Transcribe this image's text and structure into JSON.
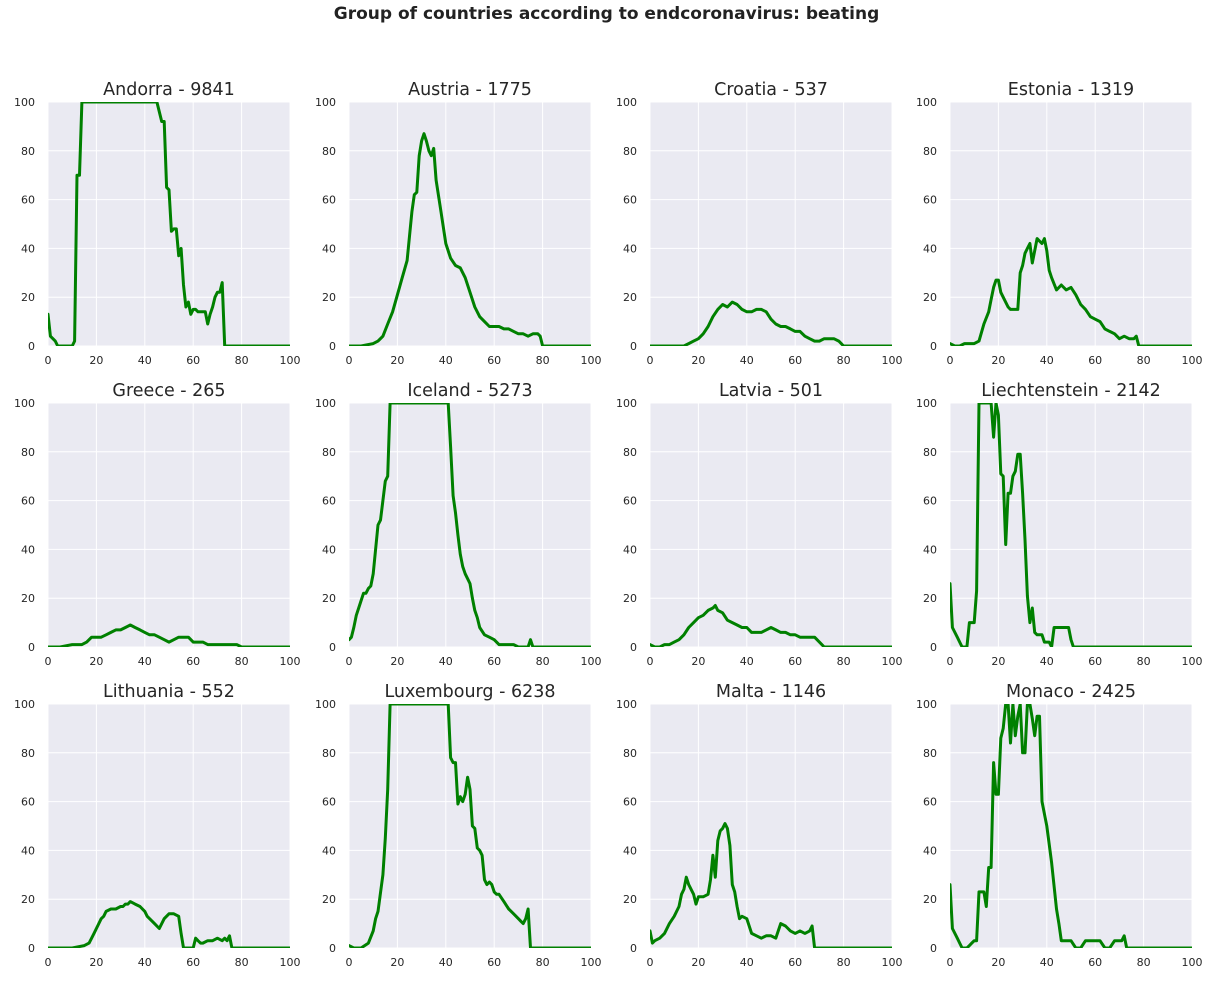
{
  "suptitle": "Group of countries according to endcoronavirus: beating",
  "style": {
    "line_color": "#008000",
    "axes_bg": "#eaeaf2",
    "grid_color": "#ffffff"
  },
  "chart_data": [
    {
      "type": "line",
      "title": "Andorra - 9841",
      "xlim": [
        0,
        100
      ],
      "ylim": [
        0,
        100
      ],
      "xticks": [
        0,
        20,
        40,
        60,
        80,
        100
      ],
      "yticks": [
        0,
        20,
        40,
        60,
        80,
        100
      ],
      "grid": true,
      "x": [
        0,
        1,
        3,
        4,
        5,
        10,
        11,
        12,
        13,
        14,
        45,
        47,
        48,
        49,
        50,
        51,
        52,
        53,
        54,
        55,
        56,
        57,
        58,
        59,
        60,
        61,
        62,
        63,
        64,
        65,
        66,
        67,
        68,
        69,
        70,
        71,
        72,
        73,
        74,
        80,
        100
      ],
      "y": [
        13,
        4,
        2,
        0,
        0,
        0,
        2,
        70,
        70,
        100,
        100,
        92,
        92,
        65,
        64,
        47,
        48,
        48,
        37,
        40,
        25,
        16,
        18,
        13,
        15,
        15,
        14,
        14,
        14,
        14,
        9,
        13,
        16,
        20,
        22,
        22,
        26,
        0,
        0,
        0,
        0
      ]
    },
    {
      "type": "line",
      "title": "Austria - 1775",
      "xlim": [
        0,
        100
      ],
      "ylim": [
        0,
        100
      ],
      "xticks": [
        0,
        20,
        40,
        60,
        80,
        100
      ],
      "yticks": [
        0,
        20,
        40,
        60,
        80,
        100
      ],
      "grid": true,
      "x": [
        0,
        5,
        10,
        12,
        14,
        16,
        18,
        20,
        22,
        24,
        25,
        26,
        27,
        28,
        29,
        30,
        31,
        32,
        33,
        34,
        35,
        36,
        38,
        40,
        42,
        44,
        46,
        48,
        50,
        52,
        54,
        56,
        58,
        60,
        62,
        64,
        66,
        68,
        70,
        72,
        74,
        76,
        78,
        79,
        80,
        100
      ],
      "y": [
        0,
        0,
        1,
        2,
        4,
        9,
        14,
        21,
        28,
        35,
        45,
        55,
        62,
        63,
        78,
        84,
        87,
        84,
        80,
        78,
        81,
        68,
        55,
        42,
        36,
        33,
        32,
        28,
        22,
        16,
        12,
        10,
        8,
        8,
        8,
        7,
        7,
        6,
        5,
        5,
        4,
        5,
        5,
        4,
        0,
        0
      ]
    },
    {
      "type": "line",
      "title": "Croatia - 537",
      "xlim": [
        0,
        100
      ],
      "ylim": [
        0,
        100
      ],
      "xticks": [
        0,
        20,
        40,
        60,
        80,
        100
      ],
      "yticks": [
        0,
        20,
        40,
        60,
        80,
        100
      ],
      "grid": true,
      "x": [
        0,
        5,
        10,
        14,
        16,
        18,
        20,
        22,
        24,
        26,
        28,
        30,
        32,
        34,
        36,
        38,
        40,
        42,
        44,
        46,
        48,
        50,
        52,
        54,
        56,
        58,
        60,
        62,
        64,
        66,
        68,
        70,
        72,
        74,
        76,
        78,
        80,
        100
      ],
      "y": [
        0,
        0,
        0,
        0,
        1,
        2,
        3,
        5,
        8,
        12,
        15,
        17,
        16,
        18,
        17,
        15,
        14,
        14,
        15,
        15,
        14,
        11,
        9,
        8,
        8,
        7,
        6,
        6,
        4,
        3,
        2,
        2,
        3,
        3,
        3,
        2,
        0,
        0
      ]
    },
    {
      "type": "line",
      "title": "Estonia - 1319",
      "xlim": [
        0,
        100
      ],
      "ylim": [
        0,
        100
      ],
      "xticks": [
        0,
        20,
        40,
        60,
        80,
        100
      ],
      "yticks": [
        0,
        20,
        40,
        60,
        80,
        100
      ],
      "grid": true,
      "x": [
        0,
        2,
        4,
        6,
        8,
        10,
        12,
        14,
        16,
        17,
        18,
        19,
        20,
        21,
        22,
        24,
        25,
        26,
        28,
        29,
        30,
        31,
        32,
        33,
        34,
        36,
        37,
        38,
        39,
        40,
        41,
        42,
        44,
        46,
        48,
        50,
        52,
        54,
        56,
        58,
        60,
        62,
        64,
        66,
        68,
        70,
        72,
        74,
        76,
        77,
        78,
        80,
        100
      ],
      "y": [
        1,
        0,
        0,
        1,
        1,
        1,
        2,
        9,
        14,
        19,
        24,
        27,
        27,
        22,
        20,
        16,
        15,
        15,
        15,
        30,
        33,
        38,
        40,
        42,
        34,
        44,
        43,
        42,
        44,
        39,
        31,
        28,
        23,
        25,
        23,
        24,
        21,
        17,
        15,
        12,
        11,
        10,
        7,
        6,
        5,
        3,
        4,
        3,
        3,
        4,
        0,
        0,
        0
      ]
    },
    {
      "type": "line",
      "title": "Greece - 265",
      "xlim": [
        0,
        100
      ],
      "ylim": [
        0,
        100
      ],
      "xticks": [
        0,
        20,
        40,
        60,
        80,
        100
      ],
      "yticks": [
        0,
        20,
        40,
        60,
        80,
        100
      ],
      "grid": true,
      "x": [
        0,
        5,
        10,
        12,
        14,
        16,
        18,
        20,
        22,
        24,
        26,
        28,
        30,
        32,
        34,
        36,
        38,
        40,
        42,
        44,
        46,
        48,
        50,
        52,
        54,
        56,
        58,
        60,
        62,
        64,
        66,
        70,
        74,
        76,
        78,
        80,
        100
      ],
      "y": [
        0,
        0,
        1,
        1,
        1,
        2,
        4,
        4,
        4,
        5,
        6,
        7,
        7,
        8,
        9,
        8,
        7,
        6,
        5,
        5,
        4,
        3,
        2,
        3,
        4,
        4,
        4,
        2,
        2,
        2,
        1,
        1,
        1,
        1,
        1,
        0,
        0
      ]
    },
    {
      "type": "line",
      "title": "Iceland - 5273",
      "xlim": [
        0,
        100
      ],
      "ylim": [
        0,
        100
      ],
      "xticks": [
        0,
        20,
        40,
        60,
        80,
        100
      ],
      "yticks": [
        0,
        20,
        40,
        60,
        80,
        100
      ],
      "grid": true,
      "x": [
        0,
        1,
        2,
        3,
        4,
        5,
        6,
        7,
        8,
        9,
        10,
        11,
        12,
        13,
        14,
        15,
        16,
        17,
        41,
        42,
        43,
        44,
        45,
        46,
        47,
        48,
        49,
        50,
        51,
        52,
        53,
        54,
        56,
        58,
        60,
        62,
        64,
        66,
        68,
        70,
        72,
        74,
        75,
        76,
        80,
        100
      ],
      "y": [
        3,
        4,
        8,
        13,
        16,
        19,
        22,
        22,
        24,
        25,
        30,
        40,
        50,
        52,
        60,
        68,
        70,
        100,
        100,
        82,
        62,
        55,
        46,
        38,
        33,
        30,
        28,
        26,
        20,
        15,
        12,
        8,
        5,
        4,
        3,
        1,
        1,
        1,
        1,
        0,
        0,
        0,
        3,
        0,
        0,
        0
      ]
    },
    {
      "type": "line",
      "title": "Latvia - 501",
      "xlim": [
        0,
        100
      ],
      "ylim": [
        0,
        100
      ],
      "xticks": [
        0,
        20,
        40,
        60,
        80,
        100
      ],
      "yticks": [
        0,
        20,
        40,
        60,
        80,
        100
      ],
      "grid": true,
      "x": [
        0,
        2,
        4,
        6,
        8,
        10,
        12,
        14,
        16,
        18,
        20,
        22,
        24,
        26,
        27,
        28,
        30,
        32,
        34,
        36,
        38,
        40,
        42,
        44,
        46,
        48,
        50,
        52,
        54,
        56,
        58,
        60,
        62,
        64,
        66,
        68,
        70,
        72,
        74,
        76,
        100
      ],
      "y": [
        1,
        0,
        0,
        1,
        1,
        2,
        3,
        5,
        8,
        10,
        12,
        13,
        15,
        16,
        17,
        15,
        14,
        11,
        10,
        9,
        8,
        8,
        6,
        6,
        6,
        7,
        8,
        7,
        6,
        6,
        5,
        5,
        4,
        4,
        4,
        4,
        2,
        0,
        0,
        0,
        0
      ]
    },
    {
      "type": "line",
      "title": "Liechtenstein - 2142",
      "xlim": [
        0,
        100
      ],
      "ylim": [
        0,
        100
      ],
      "xticks": [
        0,
        20,
        40,
        60,
        80,
        100
      ],
      "yticks": [
        0,
        20,
        40,
        60,
        80,
        100
      ],
      "grid": true,
      "x": [
        0,
        1,
        3,
        4,
        5,
        6,
        7,
        8,
        9,
        10,
        11,
        12,
        13,
        14,
        15,
        17,
        18,
        19,
        20,
        21,
        22,
        23,
        24,
        25,
        26,
        27,
        28,
        29,
        30,
        31,
        32,
        33,
        34,
        35,
        36,
        38,
        39,
        40,
        41,
        42,
        43,
        48,
        49,
        50,
        51,
        52,
        53,
        100
      ],
      "y": [
        26,
        8,
        4,
        2,
        0,
        0,
        0,
        10,
        10,
        10,
        23,
        100,
        100,
        100,
        100,
        100,
        86,
        100,
        95,
        71,
        70,
        42,
        63,
        63,
        70,
        72,
        79,
        79,
        63,
        44,
        21,
        10,
        16,
        6,
        5,
        5,
        2,
        2,
        2,
        0,
        8,
        8,
        8,
        3,
        0,
        0,
        0,
        0
      ]
    },
    {
      "type": "line",
      "title": "Lithuania - 552",
      "xlim": [
        0,
        100
      ],
      "ylim": [
        0,
        100
      ],
      "xticks": [
        0,
        20,
        40,
        60,
        80,
        100
      ],
      "yticks": [
        0,
        20,
        40,
        60,
        80,
        100
      ],
      "grid": true,
      "x": [
        0,
        5,
        10,
        15,
        17,
        18,
        19,
        20,
        21,
        22,
        23,
        24,
        26,
        28,
        30,
        31,
        32,
        33,
        34,
        36,
        38,
        40,
        41,
        42,
        44,
        46,
        48,
        50,
        52,
        54,
        55,
        56,
        57,
        58,
        59,
        60,
        61,
        62,
        63,
        64,
        66,
        68,
        70,
        72,
        73,
        74,
        75,
        76,
        77,
        80,
        100
      ],
      "y": [
        0,
        0,
        0,
        1,
        2,
        4,
        6,
        8,
        10,
        12,
        13,
        15,
        16,
        16,
        17,
        17,
        18,
        18,
        19,
        18,
        17,
        15,
        13,
        12,
        10,
        8,
        12,
        14,
        14,
        13,
        6,
        0,
        0,
        0,
        0,
        0,
        4,
        3,
        2,
        2,
        3,
        3,
        4,
        3,
        4,
        3,
        5,
        0,
        0,
        0,
        0
      ]
    },
    {
      "type": "line",
      "title": "Luxembourg - 6238",
      "xlim": [
        0,
        100
      ],
      "ylim": [
        0,
        100
      ],
      "xticks": [
        0,
        20,
        40,
        60,
        80,
        100
      ],
      "yticks": [
        0,
        20,
        40,
        60,
        80,
        100
      ],
      "grid": true,
      "x": [
        0,
        2,
        5,
        8,
        10,
        11,
        12,
        14,
        15,
        16,
        17,
        41,
        42,
        43,
        44,
        45,
        46,
        47,
        48,
        49,
        50,
        51,
        52,
        53,
        54,
        55,
        56,
        57,
        58,
        59,
        60,
        61,
        62,
        64,
        66,
        68,
        70,
        71,
        72,
        73,
        74,
        75,
        76,
        80,
        100
      ],
      "y": [
        1,
        0,
        0,
        2,
        7,
        12,
        15,
        30,
        45,
        65,
        100,
        100,
        78,
        76,
        76,
        59,
        62,
        60,
        63,
        70,
        65,
        50,
        49,
        41,
        40,
        38,
        28,
        26,
        27,
        26,
        23,
        22,
        22,
        19,
        16,
        14,
        12,
        11,
        10,
        12,
        16,
        0,
        0,
        0,
        0
      ]
    },
    {
      "type": "line",
      "title": "Malta - 1146",
      "xlim": [
        0,
        100
      ],
      "ylim": [
        0,
        100
      ],
      "xticks": [
        0,
        20,
        40,
        60,
        80,
        100
      ],
      "yticks": [
        0,
        20,
        40,
        60,
        80,
        100
      ],
      "grid": true,
      "x": [
        0,
        1,
        2,
        4,
        6,
        8,
        10,
        12,
        13,
        14,
        15,
        16,
        18,
        19,
        20,
        22,
        24,
        25,
        26,
        27,
        28,
        29,
        30,
        31,
        32,
        33,
        34,
        35,
        36,
        37,
        38,
        40,
        42,
        44,
        46,
        48,
        50,
        52,
        54,
        56,
        58,
        60,
        62,
        64,
        66,
        67,
        68,
        70,
        80,
        100
      ],
      "y": [
        7,
        2,
        3,
        4,
        6,
        10,
        13,
        17,
        22,
        24,
        29,
        26,
        22,
        18,
        21,
        21,
        22,
        28,
        38,
        29,
        44,
        48,
        49,
        51,
        49,
        42,
        26,
        23,
        17,
        12,
        13,
        12,
        6,
        5,
        4,
        5,
        5,
        4,
        10,
        9,
        7,
        6,
        7,
        6,
        7,
        9,
        0,
        0,
        0,
        0
      ]
    },
    {
      "type": "line",
      "title": "Monaco - 2425",
      "xlim": [
        0,
        100
      ],
      "ylim": [
        0,
        100
      ],
      "xticks": [
        0,
        20,
        40,
        60,
        80,
        100
      ],
      "yticks": [
        0,
        20,
        40,
        60,
        80,
        100
      ],
      "grid": true,
      "x": [
        0,
        1,
        3,
        4,
        5,
        6,
        7,
        8,
        9,
        10,
        11,
        12,
        13,
        14,
        15,
        16,
        17,
        18,
        19,
        20,
        21,
        22,
        23,
        24,
        25,
        26,
        27,
        28,
        29,
        30,
        31,
        32,
        33,
        34,
        35,
        36,
        37,
        38,
        40,
        42,
        44,
        45,
        46,
        48,
        50,
        52,
        54,
        56,
        58,
        60,
        62,
        64,
        66,
        68,
        70,
        71,
        72,
        73,
        74,
        100
      ],
      "y": [
        26,
        8,
        4,
        2,
        0,
        0,
        0,
        1,
        2,
        3,
        3,
        23,
        23,
        23,
        17,
        33,
        33,
        76,
        63,
        63,
        86,
        90,
        100,
        100,
        84,
        100,
        87,
        95,
        100,
        80,
        80,
        100,
        100,
        94,
        87,
        95,
        95,
        60,
        50,
        35,
        16,
        10,
        3,
        3,
        3,
        0,
        0,
        3,
        3,
        3,
        3,
        0,
        0,
        3,
        3,
        3,
        5,
        0,
        0,
        0
      ]
    }
  ]
}
